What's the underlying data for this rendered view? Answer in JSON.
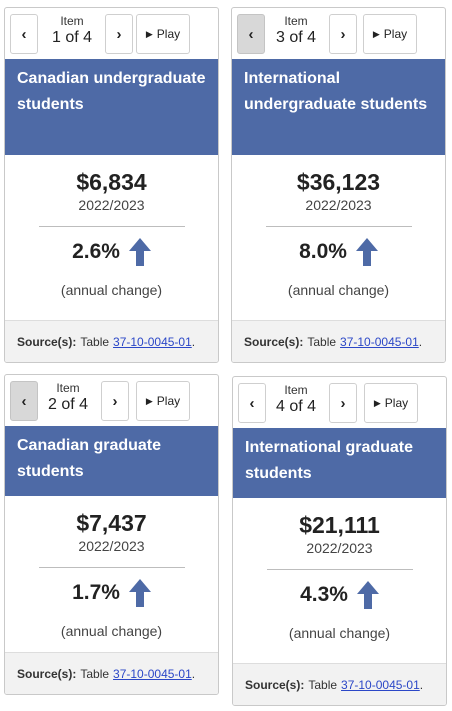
{
  "common": {
    "item_label": "Item",
    "play_label": "Play",
    "prev_glyph": "‹",
    "next_glyph": "›",
    "play_glyph": "▶",
    "source_label": "Source(s):",
    "table_prefix": "Table",
    "table_link": "37-10-0045-01",
    "period_end": ".",
    "annual_change_label": "(annual change)",
    "header_color": "#4e6aa6",
    "arrow_color": "#4e6aa6",
    "arrow_icon": "arrow-up-icon"
  },
  "cards": [
    {
      "position": "1 of 4",
      "title": "Canadian undergraduate students",
      "amount": "$6,834",
      "period": "2022/2023",
      "change": "2.6%",
      "prev_disabled": false
    },
    {
      "position": "3 of 4",
      "title": "International undergraduate students",
      "amount": "$36,123",
      "period": "2022/2023",
      "change": "8.0%",
      "prev_disabled": true
    },
    {
      "position": "2 of 4",
      "title": "Canadian graduate students",
      "amount": "$7,437",
      "period": "2022/2023",
      "change": "1.7%",
      "prev_disabled": true
    },
    {
      "position": "4 of 4",
      "title": "International graduate students",
      "amount": "$21,111",
      "period": "2022/2023",
      "change": "4.3%",
      "prev_disabled": false
    }
  ]
}
